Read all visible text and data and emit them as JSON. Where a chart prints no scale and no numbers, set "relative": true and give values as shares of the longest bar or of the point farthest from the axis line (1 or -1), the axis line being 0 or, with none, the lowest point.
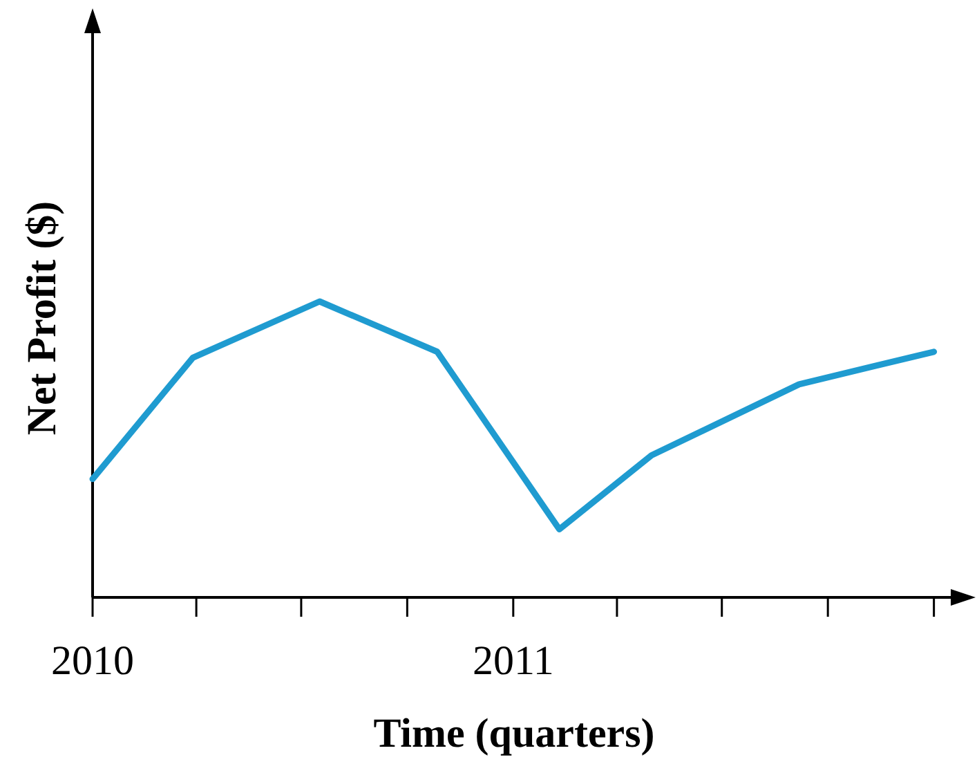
{
  "chart_data": {
    "type": "line",
    "xlabel": "Time (quarters)",
    "ylabel": "Net Profit ($)",
    "relative": true,
    "x": [
      "2010-01-01",
      "2010-03-29",
      "2010-07-17",
      "2010-10-27",
      "2011-02-10",
      "2011-05-01",
      "2011-09-06",
      "2012-01-01"
    ],
    "series": [
      {
        "color": "#1f9bd0",
        "values": [
          0.4,
          0.81,
          1,
          0.83,
          0.23,
          0.48,
          0.72,
          0.83
        ]
      }
    ],
    "xlim": [
      "2010-01-01",
      "2012-01-30"
    ],
    "xticks": [
      "2010",
      {
        "value": "2010-04-01",
        "label": null
      },
      {
        "value": "2010-07-01",
        "label": null
      },
      {
        "value": "2010-10-01",
        "label": null
      },
      "2011",
      {
        "value": "2011-04-01",
        "label": null
      },
      {
        "value": "2011-07-01",
        "label": null
      },
      {
        "value": "2011-10-01",
        "label": null
      },
      {
        "value": "2012-01-01",
        "label": null
      }
    ],
    "grid": false,
    "legend": false,
    "marker": "none",
    "line_style": "solid"
  }
}
